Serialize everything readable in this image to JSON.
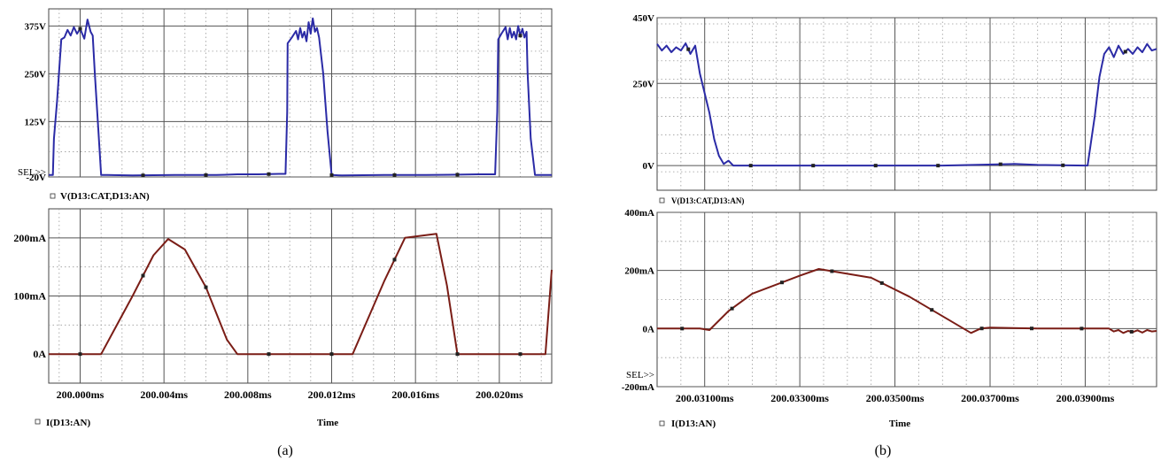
{
  "colors": {
    "voltage": "#2b2ba6",
    "current": "#7a1d16",
    "marker": "#222222"
  },
  "panels": [
    {
      "caption": "(a)",
      "time_axis_label": "Time",
      "x_tick_labels": [
        "200.000ms",
        "200.004ms",
        "200.008ms",
        "200.012ms",
        "200.016ms",
        "200.020ms"
      ]
    },
    {
      "caption": "(b)",
      "time_axis_label": "Time",
      "x_tick_labels": [
        "200.03100ms",
        "200.03300ms",
        "200.03500ms",
        "200.03700ms",
        "200.03900ms"
      ]
    }
  ],
  "chart_data": [
    {
      "type": "line",
      "panel": "a-top",
      "ylabel": "",
      "xlabel": "",
      "legend": "V(D13:CAT,D13:AN)",
      "sel_label": "SEL>>",
      "xlim": [
        199.9985,
        200.0225
      ],
      "ylim": [
        -20,
        420
      ],
      "y_tick_values": [
        -20,
        125,
        250,
        375
      ],
      "y_tick_labels": [
        "-20V",
        "125V",
        "250V",
        "375V"
      ],
      "x_ticks": [
        200.0,
        200.004,
        200.008,
        200.012,
        200.016,
        200.02
      ],
      "grid": true,
      "series": [
        {
          "name": "V(D13:CAT,D13:AN)",
          "x": [
            199.9985,
            199.9987,
            199.99875,
            199.9989,
            199.9991,
            199.99925,
            199.9994,
            199.99955,
            199.9997,
            199.99985,
            200.0,
            200.0002,
            200.00035,
            200.0005,
            200.0006,
            200.0007,
            200.00085,
            200.001,
            200.0013,
            200.0025,
            200.0045,
            200.0065,
            200.0075,
            200.0085,
            200.0095,
            200.0098,
            200.00988,
            200.0099,
            200.0101,
            200.0103,
            200.0104,
            200.0105,
            200.0106,
            200.0107,
            200.0108,
            200.0109,
            200.011,
            200.0111,
            200.0112,
            200.0113,
            200.0114,
            200.0116,
            200.0118,
            200.012,
            200.0125,
            200.0145,
            200.0165,
            200.018,
            200.019,
            200.0195,
            200.0198,
            200.0199,
            200.01995,
            200.0201,
            200.0203,
            200.0204,
            200.0205,
            200.0206,
            200.0207,
            200.0208,
            200.0209,
            200.021,
            200.0211,
            200.0212,
            200.0213,
            200.02135,
            200.0215,
            200.0217,
            200.0219,
            200.0222,
            200.0225
          ],
          "y": [
            -15,
            -15,
            80,
            180,
            340,
            345,
            365,
            350,
            372,
            355,
            368,
            342,
            392,
            360,
            350,
            250,
            120,
            -15,
            -15,
            -16,
            -15,
            -15,
            -13,
            -13,
            -12,
            -12,
            150,
            330,
            345,
            362,
            340,
            370,
            345,
            360,
            335,
            385,
            355,
            395,
            360,
            370,
            345,
            250,
            100,
            -15,
            -16,
            -15,
            -15,
            -14,
            -13,
            -13,
            -13,
            150,
            340,
            355,
            372,
            340,
            370,
            345,
            360,
            340,
            375,
            350,
            368,
            345,
            360,
            250,
            80,
            -15,
            -15,
            -15,
            -15
          ]
        }
      ]
    },
    {
      "type": "line",
      "panel": "a-bottom",
      "ylabel": "",
      "xlabel": "Time",
      "legend": "I(D13:AN)",
      "xlim": [
        199.9985,
        200.0225
      ],
      "ylim": [
        -50,
        250
      ],
      "y_tick_values": [
        0,
        100,
        200
      ],
      "y_tick_labels": [
        "0A",
        "100mA",
        "200mA"
      ],
      "x_ticks": [
        200.0,
        200.004,
        200.008,
        200.012,
        200.016,
        200.02
      ],
      "grid": true,
      "series": [
        {
          "name": "I(D13:AN)",
          "x": [
            199.9985,
            200.0005,
            200.001,
            200.0025,
            200.0035,
            200.0042,
            200.005,
            200.006,
            200.007,
            200.0075,
            200.008,
            200.012,
            200.013,
            200.0145,
            200.0155,
            200.017,
            200.0175,
            200.018,
            200.0205,
            200.021,
            200.0222,
            200.0225
          ],
          "y": [
            0,
            0,
            0,
            100,
            170,
            198,
            180,
            115,
            25,
            0,
            0,
            0,
            0,
            125,
            200,
            207,
            118,
            0,
            0,
            0,
            0,
            145
          ]
        }
      ]
    },
    {
      "type": "line",
      "panel": "b-top",
      "ylabel": "",
      "xlabel": "",
      "legend": "V(D13:CAT,D13:AN)",
      "xlim": [
        200.03,
        200.0405
      ],
      "ylim": [
        -75,
        450
      ],
      "y_tick_values": [
        0,
        250,
        450
      ],
      "y_tick_labels": [
        "0V",
        "250V",
        "450V"
      ],
      "x_ticks": [
        200.031,
        200.033,
        200.035,
        200.037,
        200.039
      ],
      "grid": true,
      "series": [
        {
          "name": "V(D13:CAT,D13:AN)",
          "x": [
            200.03,
            200.0301,
            200.0302,
            200.0303,
            200.0304,
            200.0305,
            200.0306,
            200.0307,
            200.0308,
            200.0309,
            200.031,
            200.0311,
            200.0312,
            200.0313,
            200.0314,
            200.0315,
            200.0316,
            200.0318,
            200.032,
            200.034,
            200.036,
            200.0375,
            200.038,
            200.039,
            200.03905,
            200.0391,
            200.0392,
            200.0393,
            200.0394,
            200.0395,
            200.0396,
            200.0397,
            200.0398,
            200.0399,
            200.04,
            200.0401,
            200.0402,
            200.0403,
            200.0404,
            200.0405
          ],
          "y": [
            370,
            350,
            365,
            345,
            360,
            350,
            372,
            340,
            365,
            280,
            220,
            160,
            80,
            30,
            5,
            15,
            0,
            0,
            0,
            0,
            0,
            5,
            2,
            0,
            0,
            50,
            150,
            270,
            340,
            360,
            330,
            365,
            340,
            355,
            340,
            360,
            345,
            370,
            350,
            355
          ]
        }
      ]
    },
    {
      "type": "line",
      "panel": "b-bottom",
      "ylabel": "",
      "xlabel": "Time",
      "legend": "I(D13:AN)",
      "sel_label": "SEL>>",
      "xlim": [
        200.03,
        200.0405
      ],
      "ylim": [
        -200,
        400
      ],
      "y_tick_values": [
        -200,
        0,
        200,
        400
      ],
      "y_tick_labels": [
        "-200mA",
        "0A",
        "200mA",
        "400mA"
      ],
      "x_ticks": [
        200.031,
        200.033,
        200.035,
        200.037,
        200.039
      ],
      "grid": true,
      "series": [
        {
          "name": "I(D13:AN)",
          "x": [
            200.03,
            200.0309,
            200.0311,
            200.0315,
            200.032,
            200.033,
            200.0334,
            200.0345,
            200.0353,
            200.0366,
            200.0368,
            200.037,
            200.038,
            200.0392,
            200.0395,
            200.0396,
            200.0397,
            200.0398,
            200.0399,
            200.04,
            200.0401,
            200.0402,
            200.0403,
            200.0404,
            200.0405
          ],
          "y": [
            0,
            0,
            -5,
            60,
            120,
            182,
            205,
            175,
            110,
            -15,
            0,
            3,
            0,
            0,
            0,
            -10,
            -5,
            -15,
            -8,
            -12,
            -6,
            -14,
            -5,
            -10,
            -8
          ]
        }
      ]
    }
  ]
}
